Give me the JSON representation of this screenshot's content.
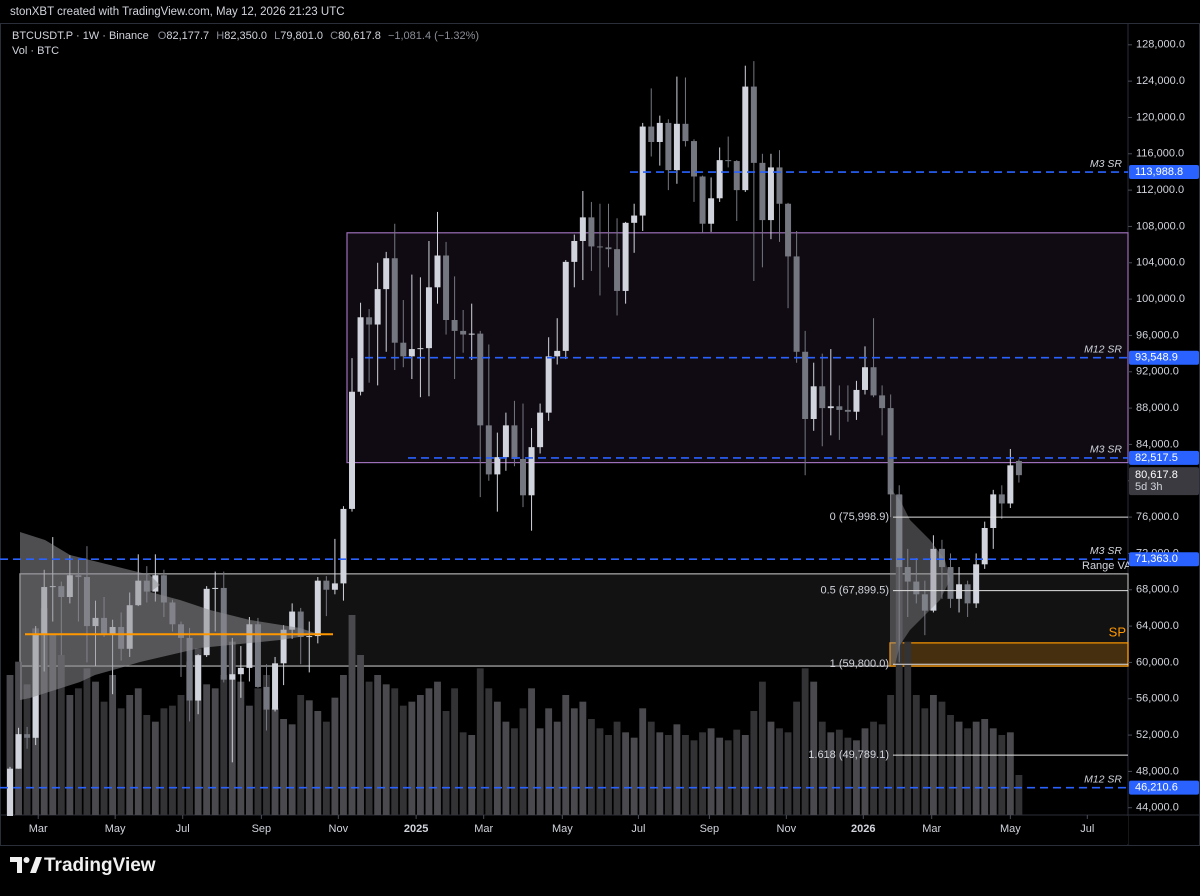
{
  "header": {
    "credit": "stonXBT created with TradingView.com, May 12, 2026 21:23 UTC",
    "brand": "TradingView"
  },
  "legend": {
    "symbol": "BTCUSDT.P · 1W · Binance",
    "o": "O",
    "open": "82,177.7",
    "h": "H",
    "high": "82,350.0",
    "l": "L",
    "low": "79,801.0",
    "c": "C",
    "close": "80,617.8",
    "change": "−1,081.4 (−1.32%)",
    "volume": "Vol · BTC"
  },
  "chart_data": {
    "type": "candlestick",
    "up_color": "#d1d4dc",
    "down_color": "#74777f",
    "volume_up_color": "#4a4a4e",
    "volume_down_color": "#333336",
    "open": [
      42600,
      48300,
      52100,
      51700,
      63100,
      68300,
      68400,
      67200,
      69600,
      69400,
      64000,
      64900,
      63100,
      63900,
      61500,
      66300,
      69000,
      67800,
      69600,
      66600,
      64200,
      62700,
      55800,
      60800,
      68100,
      68200,
      58100,
      58700,
      59400,
      64200,
      57300,
      54800,
      59900,
      63600,
      65600,
      62800,
      62900,
      69000,
      68000,
      68700,
      76900,
      89800,
      98000,
      97200,
      101100,
      104500,
      95200,
      93700,
      94500,
      94600,
      101300,
      104800,
      97700,
      96500,
      96100,
      96200,
      86100,
      80700,
      82600,
      86100,
      82400,
      78400,
      83700,
      87500,
      93700,
      94300,
      104100,
      106400,
      109000,
      105800,
      105700,
      105500,
      100900,
      108400,
      109200,
      119000,
      117300,
      119400,
      114200,
      119300,
      117400,
      113500,
      108300,
      111100,
      115300,
      115200,
      112000,
      123400,
      115000,
      108700,
      114500,
      110500,
      104700,
      94200,
      86800,
      90400,
      88000,
      88200,
      87800,
      87600,
      90000,
      92500,
      89400,
      88000,
      78500,
      70500,
      68900,
      67500,
      65700,
      72500,
      70500,
      67000,
      68600,
      66500,
      70800,
      74800,
      78500,
      77500,
      82177.7
    ],
    "high": [
      48500,
      52800,
      52900,
      64000,
      70200,
      73800,
      68900,
      71800,
      71300,
      72800,
      66800,
      67200,
      64700,
      65500,
      67700,
      71900,
      70600,
      71900,
      70200,
      66900,
      64500,
      63800,
      60900,
      68400,
      70000,
      70000,
      62700,
      61800,
      65000,
      64900,
      59800,
      60600,
      64100,
      66500,
      66000,
      64500,
      69400,
      69500,
      73600,
      77200,
      93500,
      99600,
      98900,
      104000,
      105200,
      108300,
      99900,
      102700,
      102400,
      106400,
      109600,
      106300,
      102500,
      98800,
      99500,
      96500,
      95000,
      85300,
      87500,
      88800,
      88500,
      85800,
      88500,
      95800,
      97900,
      104300,
      107100,
      111900,
      110700,
      110500,
      110500,
      108900,
      108500,
      110500,
      119400,
      123200,
      120200,
      119800,
      124500,
      124400,
      117600,
      113600,
      113400,
      116700,
      117900,
      115300,
      125700,
      126200,
      116000,
      116000,
      116400,
      110600,
      107500,
      96500,
      93000,
      94000,
      94500,
      90500,
      90500,
      91000,
      94800,
      97900,
      90500,
      89500,
      79500,
      72500,
      71500,
      69000,
      74000,
      73500,
      72000,
      70500,
      69000,
      72000,
      75500,
      79000,
      79500,
      83500,
      82350
    ],
    "low": [
      42500,
      48300,
      50500,
      50900,
      59000,
      64500,
      60800,
      66500,
      64500,
      60000,
      59600,
      62800,
      56500,
      60200,
      60600,
      66200,
      66600,
      66700,
      65000,
      63400,
      58400,
      53500,
      54300,
      60600,
      63400,
      57800,
      49000,
      56100,
      57900,
      57200,
      52500,
      54600,
      57500,
      62600,
      59800,
      58900,
      62100,
      65100,
      67500,
      66800,
      76600,
      89400,
      90800,
      90500,
      94200,
      92200,
      92500,
      91200,
      89200,
      89300,
      99500,
      96100,
      91200,
      94100,
      93300,
      78200,
      80000,
      76600,
      81100,
      81600,
      77100,
      74500,
      83000,
      86600,
      92800,
      93400,
      101300,
      102100,
      103100,
      100400,
      103500,
      98200,
      99500,
      105100,
      107500,
      115700,
      114700,
      112000,
      112700,
      116800,
      110700,
      107300,
      107400,
      110700,
      114500,
      108600,
      111800,
      102000,
      103500,
      106600,
      106300,
      99000,
      93000,
      80600,
      85500,
      83800,
      85000,
      84500,
      86500,
      86700,
      89500,
      89200,
      85000,
      76000,
      60000,
      65000,
      66500,
      63000,
      65500,
      67000,
      66000,
      65500,
      65000,
      66000,
      70300,
      72500,
      75800,
      77000,
      79801
    ],
    "close": [
      48300,
      52100,
      51700,
      63100,
      68300,
      68400,
      67200,
      69600,
      69400,
      64000,
      64900,
      63100,
      63900,
      61500,
      66300,
      69000,
      67800,
      69600,
      66600,
      64200,
      62700,
      55800,
      60800,
      68100,
      68200,
      58100,
      58700,
      59400,
      64200,
      57300,
      54800,
      59900,
      63600,
      65600,
      62800,
      62900,
      69000,
      68000,
      68700,
      76900,
      89800,
      98000,
      97200,
      101100,
      104500,
      95200,
      93700,
      94500,
      94600,
      101300,
      104800,
      97700,
      96500,
      96100,
      96200,
      86100,
      80700,
      82600,
      86100,
      82400,
      78400,
      83700,
      87500,
      93700,
      94300,
      104100,
      106400,
      109000,
      105800,
      105700,
      105500,
      100900,
      108400,
      109200,
      119000,
      117300,
      119400,
      114200,
      119300,
      117400,
      113500,
      108300,
      111100,
      115300,
      115200,
      112000,
      123400,
      115000,
      108700,
      114500,
      110500,
      104700,
      94200,
      86800,
      90400,
      88000,
      88200,
      87800,
      87600,
      90000,
      92500,
      89400,
      88000,
      78500,
      70500,
      68900,
      67500,
      65700,
      72500,
      70500,
      67000,
      68600,
      66500,
      70800,
      74800,
      78500,
      77500,
      81699.2,
      80617.8
    ],
    "volume": [
      1050000,
      1150000,
      980000,
      1400000,
      1550000,
      1350000,
      1200000,
      900000,
      950000,
      1100000,
      1000000,
      850000,
      1050000,
      800000,
      900000,
      950000,
      750000,
      700000,
      800000,
      820000,
      900000,
      1150000,
      1250000,
      980000,
      950000,
      1050000,
      1300000,
      1000000,
      820000,
      950000,
      1050000,
      800000,
      720000,
      680000,
      900000,
      860000,
      780000,
      700000,
      880000,
      1050000,
      1500000,
      1200000,
      1000000,
      1050000,
      980000,
      950000,
      820000,
      850000,
      900000,
      950000,
      1000000,
      780000,
      950000,
      620000,
      600000,
      1100000,
      950000,
      850000,
      700000,
      650000,
      800000,
      950000,
      650000,
      800000,
      700000,
      900000,
      800000,
      850000,
      720000,
      650000,
      600000,
      700000,
      620000,
      580000,
      800000,
      700000,
      620000,
      600000,
      680000,
      600000,
      560000,
      620000,
      650000,
      580000,
      560000,
      640000,
      600000,
      780000,
      1000000,
      700000,
      650000,
      620000,
      850000,
      1100000,
      1000000,
      700000,
      620000,
      640000,
      580000,
      560000,
      650000,
      700000,
      680000,
      900000,
      2400000,
      1300000,
      900000,
      800000,
      900000,
      850000,
      750000,
      700000,
      650000,
      700000,
      720000,
      650000,
      600000,
      620000,
      300000
    ],
    "xlim": [
      -1.17,
      130.76
    ],
    "xticks": [
      {
        "value": 3.3,
        "label": "Mar"
      },
      {
        "value": 12.3,
        "label": "May"
      },
      {
        "value": 20.2,
        "label": "Jul"
      },
      {
        "value": 29.4,
        "label": "Sep"
      },
      {
        "value": 38.4,
        "label": "Nov"
      },
      {
        "value": 47.5,
        "label": "2025"
      },
      {
        "value": 55.4,
        "label": "Mar"
      },
      {
        "value": 64.6,
        "label": "May"
      },
      {
        "value": 73.5,
        "label": "Jul"
      },
      {
        "value": 81.8,
        "label": "Sep"
      },
      {
        "value": 90.8,
        "label": "Nov"
      },
      {
        "value": 99.8,
        "label": "2026"
      },
      {
        "value": 107.8,
        "label": "Mar"
      },
      {
        "value": 117,
        "label": "May"
      },
      {
        "value": 126,
        "label": "Jul"
      }
    ],
    "ylim": [
      43200,
      130400
    ],
    "yticks": [
      {
        "value": 44000,
        "label": "44,000.0"
      },
      {
        "value": 48000,
        "label": "48,000.0"
      },
      {
        "value": 52000,
        "label": "52,000.0"
      },
      {
        "value": 56000,
        "label": "56,000.0"
      },
      {
        "value": 60000,
        "label": "60,000.0"
      },
      {
        "value": 64000,
        "label": "64,000.0"
      },
      {
        "value": 68000,
        "label": "68,000.0"
      },
      {
        "value": 72000,
        "label": "72,000.0"
      },
      {
        "value": 76000,
        "label": "76,000.0"
      },
      {
        "value": 80000,
        "label": "80,000.0"
      },
      {
        "value": 84000,
        "label": "84,000.0"
      },
      {
        "value": 88000,
        "label": "88,000.0"
      },
      {
        "value": 92000,
        "label": "92,000.0"
      },
      {
        "value": 96000,
        "label": "96,000.0"
      },
      {
        "value": 100000,
        "label": "100,000.0"
      },
      {
        "value": 104000,
        "label": "104,000.0"
      },
      {
        "value": 108000,
        "label": "108,000.0"
      },
      {
        "value": 112000,
        "label": "112,000.0"
      },
      {
        "value": 116000,
        "label": "116,000.0"
      },
      {
        "value": 120000,
        "label": "120,000.0"
      },
      {
        "value": 124000,
        "label": "124,000.0"
      },
      {
        "value": 128000,
        "label": "128,000.0"
      }
    ],
    "grid": false,
    "level_color": "#2962ff",
    "levels": [
      {
        "name": "M3 SR",
        "price": {
          "value": 113988.8,
          "label": "113,988.8"
        }
      },
      {
        "name": "M12 SR",
        "price": {
          "value": 93548.9,
          "label": "93,548.9"
        }
      },
      {
        "name": "M3 SR",
        "price": {
          "value": 82517.5,
          "label": "82,517.5"
        }
      },
      {
        "name": "M3 SR",
        "price": {
          "value": 71363.0,
          "label": "71,363.0"
        }
      },
      {
        "name": "M12 SR",
        "price": {
          "value": 46210.6,
          "label": "46,210.6"
        }
      }
    ],
    "fibs": [
      {
        "label": "0 (75,998.9)",
        "value": 75998.9
      },
      {
        "label": "0.5 (67,899.5)",
        "value": 67899.5
      },
      {
        "label": "1 (59,800.0)",
        "value": 59800.0
      },
      {
        "label": "1.618 (49,789.1)",
        "value": 49789.1
      }
    ],
    "zones": [
      {
        "top": 107300,
        "bottom": 82000,
        "color": "#9c6fb8"
      },
      {
        "name": "Range VA",
        "top": 69750,
        "bottom": 59600,
        "color": "#b0b0b0"
      },
      {
        "name": "SP",
        "top": 62150,
        "bottom": 59600,
        "color": "#ff9800"
      }
    ],
    "poc": {
      "value": 63100,
      "color": "#ff9800"
    },
    "last_price": {
      "value": 80617.8,
      "label": "80,617.8"
    },
    "countdown": "5d 3h"
  }
}
